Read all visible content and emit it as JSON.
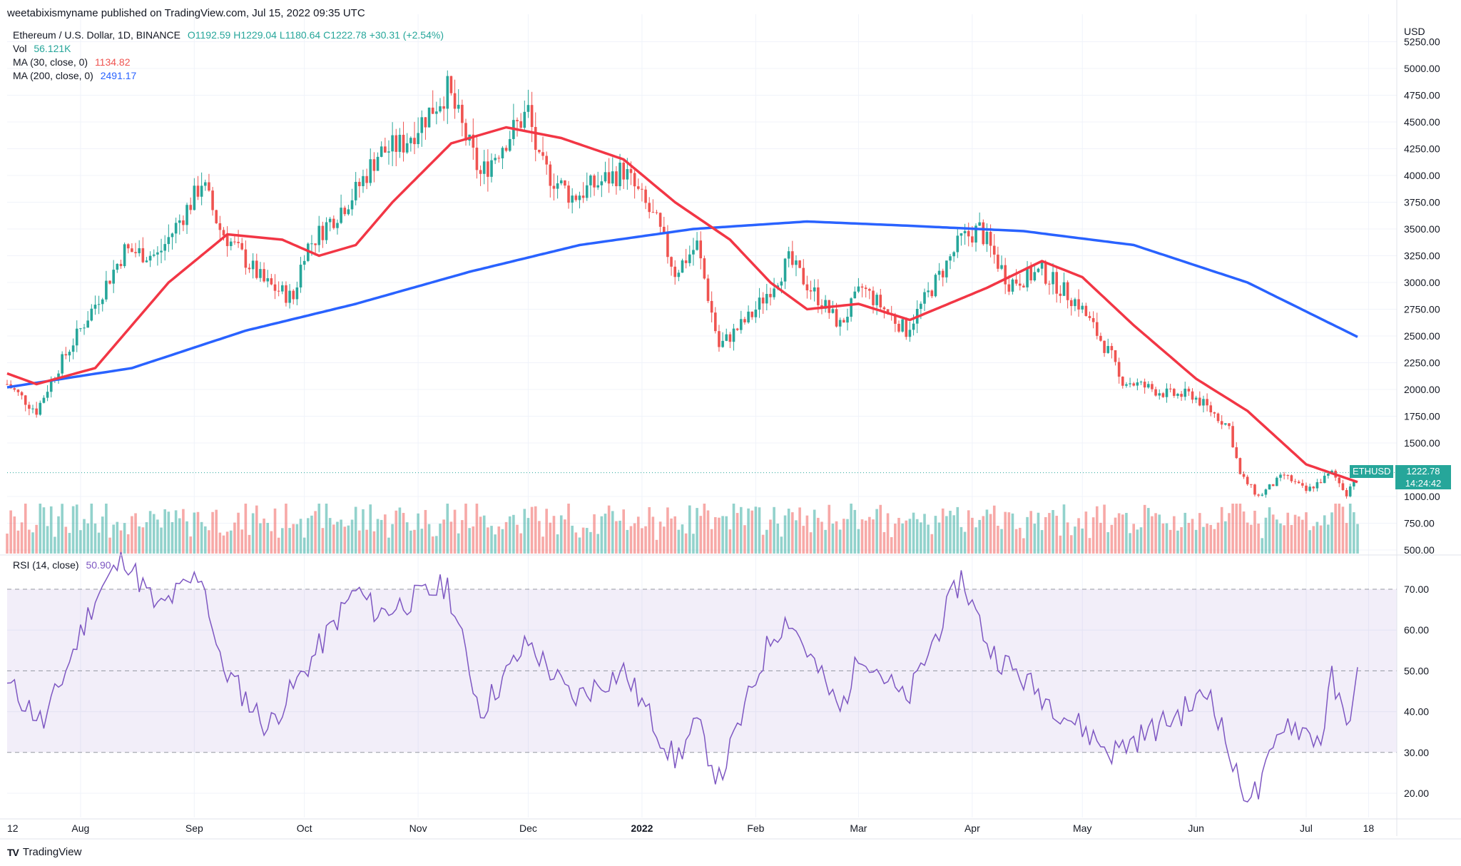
{
  "publisher": "weetabixismyname published on TradingView.com, Jul 15, 2022 09:35 UTC",
  "symbol": "Ethereum / U.S. Dollar, 1D, BINANCE",
  "ohlc": {
    "o": "O1192.59",
    "h": "H1229.04",
    "l": "L1180.64",
    "c": "C1222.78",
    "chg": "+30.31 (+2.54%)"
  },
  "volume": {
    "label": "Vol",
    "value": "56.121K"
  },
  "ma30": {
    "label": "MA (30, close, 0)",
    "value": "1134.82",
    "color": "#f23645"
  },
  "ma200": {
    "label": "MA (200, close, 0)",
    "value": "2491.17",
    "color": "#2962ff"
  },
  "rsi": {
    "label": "RSI (14, close)",
    "value": "50.90",
    "color": "#7e57c2"
  },
  "currency": "USD",
  "last_price": {
    "tag": "ETHUSD",
    "price": "1222.78",
    "countdown": "14:24:42"
  },
  "brand": "TradingView",
  "colors": {
    "up": "#26a69a",
    "down": "#ef5350",
    "grid": "#f0f3fa"
  },
  "chart_data": {
    "type": "candlestick",
    "price_axis_ticks": [
      "5250.00",
      "5000.00",
      "4750.00",
      "4500.00",
      "4250.00",
      "4000.00",
      "3750.00",
      "3500.00",
      "3250.00",
      "3000.00",
      "2750.00",
      "2500.00",
      "2250.00",
      "2000.00",
      "1750.00",
      "1500.00",
      "1000.00",
      "750.00",
      "500.00"
    ],
    "rsi_axis_ticks": [
      "70.00",
      "60.00",
      "50.00",
      "40.00",
      "30.00",
      "20.00"
    ],
    "time_axis_ticks": [
      "12",
      "Aug",
      "Sep",
      "Oct",
      "Nov",
      "Dec",
      "2022",
      "Feb",
      "Mar",
      "Apr",
      "May",
      "Jun",
      "Jul",
      "18"
    ],
    "price_ylim": [
      450,
      5300
    ],
    "rsi_ylim": [
      15,
      75
    ],
    "rsi_levels": [
      70,
      50,
      30
    ],
    "anchors": [
      {
        "date": "2021-07-12",
        "close": 2050
      },
      {
        "date": "2021-07-20",
        "close": 1800
      },
      {
        "date": "2021-07-25",
        "close": 2150
      },
      {
        "date": "2021-08-05",
        "close": 2800
      },
      {
        "date": "2021-08-13",
        "close": 3300
      },
      {
        "date": "2021-08-22",
        "close": 3250
      },
      {
        "date": "2021-09-01",
        "close": 3800
      },
      {
        "date": "2021-09-03",
        "close": 3950
      },
      {
        "date": "2021-09-08",
        "close": 3500
      },
      {
        "date": "2021-09-20",
        "close": 3000
      },
      {
        "date": "2021-09-28",
        "close": 2850
      },
      {
        "date": "2021-10-01",
        "close": 3300
      },
      {
        "date": "2021-10-15",
        "close": 3850
      },
      {
        "date": "2021-10-21",
        "close": 4200
      },
      {
        "date": "2021-10-28",
        "close": 4300
      },
      {
        "date": "2021-11-09",
        "close": 4800
      },
      {
        "date": "2021-11-18",
        "close": 4000
      },
      {
        "date": "2021-11-24",
        "close": 4300
      },
      {
        "date": "2021-12-01",
        "close": 4600
      },
      {
        "date": "2021-12-04",
        "close": 4100
      },
      {
        "date": "2021-12-13",
        "close": 3800
      },
      {
        "date": "2021-12-27",
        "close": 4050
      },
      {
        "date": "2022-01-05",
        "close": 3550
      },
      {
        "date": "2022-01-10",
        "close": 3100
      },
      {
        "date": "2022-01-16",
        "close": 3350
      },
      {
        "date": "2022-01-22",
        "close": 2400
      },
      {
        "date": "2022-01-31",
        "close": 2700
      },
      {
        "date": "2022-02-10",
        "close": 3200
      },
      {
        "date": "2022-02-24",
        "close": 2600
      },
      {
        "date": "2022-03-02",
        "close": 2950
      },
      {
        "date": "2022-03-14",
        "close": 2550
      },
      {
        "date": "2022-03-29",
        "close": 3400
      },
      {
        "date": "2022-04-03",
        "close": 3500
      },
      {
        "date": "2022-04-11",
        "close": 3000
      },
      {
        "date": "2022-04-20",
        "close": 3100
      },
      {
        "date": "2022-04-30",
        "close": 2800
      },
      {
        "date": "2022-05-09",
        "close": 2300
      },
      {
        "date": "2022-05-11",
        "close": 2100
      },
      {
        "date": "2022-05-25",
        "close": 1950
      },
      {
        "date": "2022-05-31",
        "close": 1950
      },
      {
        "date": "2022-06-10",
        "close": 1650
      },
      {
        "date": "2022-06-13",
        "close": 1200
      },
      {
        "date": "2022-06-18",
        "close": 1000
      },
      {
        "date": "2022-06-25",
        "close": 1200
      },
      {
        "date": "2022-07-01",
        "close": 1050
      },
      {
        "date": "2022-07-08",
        "close": 1220
      },
      {
        "date": "2022-07-12",
        "close": 1030
      },
      {
        "date": "2022-07-15",
        "close": 1222.78
      }
    ],
    "ma30_anchors": [
      {
        "date": "2021-07-12",
        "value": 2150
      },
      {
        "date": "2021-07-20",
        "value": 2050
      },
      {
        "date": "2021-08-05",
        "value": 2200
      },
      {
        "date": "2021-08-25",
        "value": 3000
      },
      {
        "date": "2021-09-10",
        "value": 3450
      },
      {
        "date": "2021-09-25",
        "value": 3400
      },
      {
        "date": "2021-10-05",
        "value": 3250
      },
      {
        "date": "2021-10-15",
        "value": 3350
      },
      {
        "date": "2021-10-25",
        "value": 3750
      },
      {
        "date": "2021-11-10",
        "value": 4300
      },
      {
        "date": "2021-11-25",
        "value": 4450
      },
      {
        "date": "2021-12-10",
        "value": 4350
      },
      {
        "date": "2021-12-27",
        "value": 4150
      },
      {
        "date": "2022-01-10",
        "value": 3750
      },
      {
        "date": "2022-01-25",
        "value": 3400
      },
      {
        "date": "2022-02-05",
        "value": 3000
      },
      {
        "date": "2022-02-15",
        "value": 2750
      },
      {
        "date": "2022-03-01",
        "value": 2800
      },
      {
        "date": "2022-03-15",
        "value": 2650
      },
      {
        "date": "2022-04-05",
        "value": 2950
      },
      {
        "date": "2022-04-20",
        "value": 3200
      },
      {
        "date": "2022-05-01",
        "value": 3050
      },
      {
        "date": "2022-05-15",
        "value": 2600
      },
      {
        "date": "2022-06-01",
        "value": 2100
      },
      {
        "date": "2022-06-15",
        "value": 1800
      },
      {
        "date": "2022-07-01",
        "value": 1300
      },
      {
        "date": "2022-07-15",
        "value": 1134.82
      }
    ],
    "ma200_anchors": [
      {
        "date": "2021-07-12",
        "value": 2020
      },
      {
        "date": "2021-08-15",
        "value": 2200
      },
      {
        "date": "2021-09-15",
        "value": 2550
      },
      {
        "date": "2021-10-15",
        "value": 2800
      },
      {
        "date": "2021-11-15",
        "value": 3100
      },
      {
        "date": "2021-12-15",
        "value": 3350
      },
      {
        "date": "2022-01-15",
        "value": 3500
      },
      {
        "date": "2022-02-15",
        "value": 3570
      },
      {
        "date": "2022-03-15",
        "value": 3530
      },
      {
        "date": "2022-04-15",
        "value": 3480
      },
      {
        "date": "2022-05-15",
        "value": 3350
      },
      {
        "date": "2022-06-15",
        "value": 3000
      },
      {
        "date": "2022-07-15",
        "value": 2491.17
      }
    ],
    "rsi_anchors": [
      {
        "date": "2021-07-12",
        "value": 47
      },
      {
        "date": "2021-07-22",
        "value": 37
      },
      {
        "date": "2021-08-05",
        "value": 68
      },
      {
        "date": "2021-08-13",
        "value": 78
      },
      {
        "date": "2021-08-22",
        "value": 65
      },
      {
        "date": "2021-09-03",
        "value": 74
      },
      {
        "date": "2021-09-08",
        "value": 52
      },
      {
        "date": "2021-09-21",
        "value": 36
      },
      {
        "date": "2021-10-01",
        "value": 50
      },
      {
        "date": "2021-10-15",
        "value": 70
      },
      {
        "date": "2021-10-21",
        "value": 64
      },
      {
        "date": "2021-11-09",
        "value": 71
      },
      {
        "date": "2021-11-18",
        "value": 40
      },
      {
        "date": "2021-12-01",
        "value": 57
      },
      {
        "date": "2021-12-13",
        "value": 43
      },
      {
        "date": "2021-12-27",
        "value": 50
      },
      {
        "date": "2022-01-10",
        "value": 28
      },
      {
        "date": "2022-01-16",
        "value": 37
      },
      {
        "date": "2022-01-22",
        "value": 23
      },
      {
        "date": "2022-02-05",
        "value": 58
      },
      {
        "date": "2022-02-10",
        "value": 63
      },
      {
        "date": "2022-02-24",
        "value": 40
      },
      {
        "date": "2022-03-02",
        "value": 55
      },
      {
        "date": "2022-03-14",
        "value": 42
      },
      {
        "date": "2022-03-29",
        "value": 73
      },
      {
        "date": "2022-04-06",
        "value": 55
      },
      {
        "date": "2022-04-20",
        "value": 44
      },
      {
        "date": "2022-05-09",
        "value": 30
      },
      {
        "date": "2022-05-25",
        "value": 38
      },
      {
        "date": "2022-06-05",
        "value": 45
      },
      {
        "date": "2022-06-13",
        "value": 21
      },
      {
        "date": "2022-06-18",
        "value": 20
      },
      {
        "date": "2022-06-25",
        "value": 38
      },
      {
        "date": "2022-07-05",
        "value": 33
      },
      {
        "date": "2022-07-08",
        "value": 48
      },
      {
        "date": "2022-07-12",
        "value": 36
      },
      {
        "date": "2022-07-15",
        "value": 50.9
      }
    ]
  }
}
